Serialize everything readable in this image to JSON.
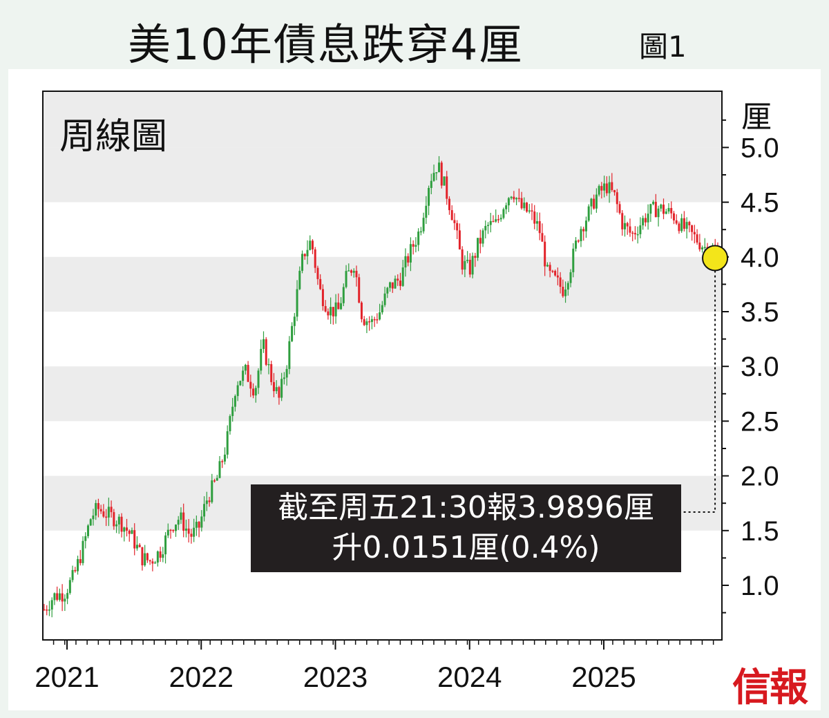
{
  "title": "美10年債息跌穿4厘",
  "figure_label": "圖1",
  "subtitle": "周線圖",
  "unit": "厘",
  "brand": "信報",
  "callout": {
    "line1": "截至周五21:30報3.9896厘",
    "line2": "升0.0151厘(0.4%)"
  },
  "colors": {
    "up": "#2e9e3e",
    "down": "#e2232a",
    "band": "#ececec",
    "highlight": "#f3e51a",
    "callout_bg": "#231f20"
  },
  "chart_data": {
    "type": "candlestick",
    "title": "美10年債息跌穿4厘",
    "subtitle": "周線圖",
    "ylabel": "厘",
    "ylim": [
      0.6,
      5.25
    ],
    "yticks": [
      "1.0",
      "1.5",
      "2.0",
      "2.5",
      "3.0",
      "3.5",
      "4.0",
      "4.5",
      "5.0"
    ],
    "x_range": [
      2020.83,
      2025.86
    ],
    "xticks": [
      "2021",
      "2022",
      "2023",
      "2024",
      "2025"
    ],
    "grid": "alternating horizontal bands",
    "latest": {
      "value": 3.9896,
      "change": 0.0151,
      "change_pct": 0.4
    },
    "path": [
      [
        2020.83,
        0.78
      ],
      [
        2020.9,
        0.9
      ],
      [
        2020.98,
        0.93
      ],
      [
        2021.05,
        1.08
      ],
      [
        2021.12,
        1.35
      ],
      [
        2021.18,
        1.63
      ],
      [
        2021.23,
        1.7
      ],
      [
        2021.3,
        1.65
      ],
      [
        2021.4,
        1.58
      ],
      [
        2021.48,
        1.45
      ],
      [
        2021.56,
        1.25
      ],
      [
        2021.62,
        1.22
      ],
      [
        2021.7,
        1.32
      ],
      [
        2021.78,
        1.55
      ],
      [
        2021.84,
        1.62
      ],
      [
        2021.92,
        1.45
      ],
      [
        2021.98,
        1.52
      ],
      [
        2022.04,
        1.78
      ],
      [
        2022.12,
        1.98
      ],
      [
        2022.19,
        2.3
      ],
      [
        2022.26,
        2.85
      ],
      [
        2022.33,
        2.95
      ],
      [
        2022.4,
        2.78
      ],
      [
        2022.46,
        3.2
      ],
      [
        2022.52,
        2.9
      ],
      [
        2022.58,
        2.7
      ],
      [
        2022.64,
        3.05
      ],
      [
        2022.7,
        3.55
      ],
      [
        2022.76,
        4.02
      ],
      [
        2022.82,
        4.15
      ],
      [
        2022.88,
        3.7
      ],
      [
        2022.95,
        3.52
      ],
      [
        2023.02,
        3.5
      ],
      [
        2023.08,
        3.8
      ],
      [
        2023.14,
        3.95
      ],
      [
        2023.2,
        3.45
      ],
      [
        2023.27,
        3.4
      ],
      [
        2023.33,
        3.5
      ],
      [
        2023.4,
        3.72
      ],
      [
        2023.48,
        3.8
      ],
      [
        2023.56,
        4.05
      ],
      [
        2023.63,
        4.25
      ],
      [
        2023.7,
        4.7
      ],
      [
        2023.76,
        4.85
      ],
      [
        2023.82,
        4.62
      ],
      [
        2023.88,
        4.35
      ],
      [
        2023.94,
        3.95
      ],
      [
        2024.0,
        3.88
      ],
      [
        2024.06,
        4.1
      ],
      [
        2024.13,
        4.28
      ],
      [
        2024.2,
        4.3
      ],
      [
        2024.26,
        4.5
      ],
      [
        2024.32,
        4.62
      ],
      [
        2024.38,
        4.45
      ],
      [
        2024.45,
        4.4
      ],
      [
        2024.52,
        4.25
      ],
      [
        2024.58,
        3.85
      ],
      [
        2024.64,
        3.78
      ],
      [
        2024.7,
        3.7
      ],
      [
        2024.76,
        3.95
      ],
      [
        2024.82,
        4.25
      ],
      [
        2024.88,
        4.38
      ],
      [
        2024.94,
        4.55
      ],
      [
        2025.02,
        4.65
      ],
      [
        2025.08,
        4.55
      ],
      [
        2025.14,
        4.3
      ],
      [
        2025.21,
        4.2
      ],
      [
        2025.27,
        4.3
      ],
      [
        2025.33,
        4.4
      ],
      [
        2025.4,
        4.45
      ],
      [
        2025.46,
        4.42
      ],
      [
        2025.52,
        4.38
      ],
      [
        2025.58,
        4.28
      ],
      [
        2025.64,
        4.22
      ],
      [
        2025.7,
        4.15
      ],
      [
        2025.76,
        4.08
      ],
      [
        2025.82,
        4.05
      ],
      [
        2025.86,
        3.99
      ]
    ]
  }
}
